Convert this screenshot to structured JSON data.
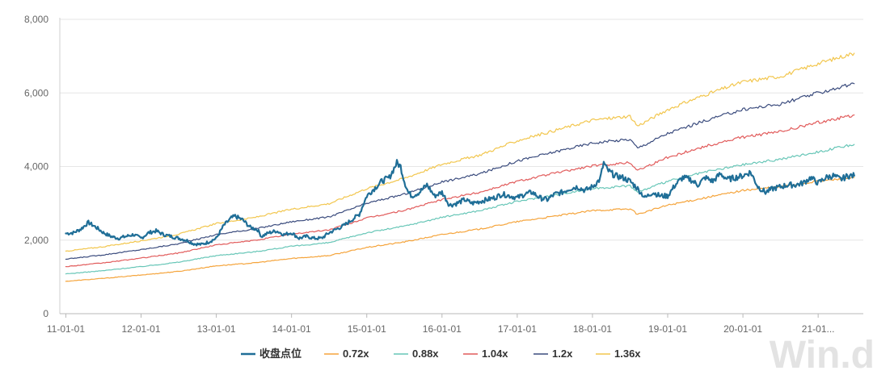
{
  "watermark": "Win.d",
  "chart_data": {
    "type": "line",
    "title": "",
    "xlabel": "",
    "ylabel": "",
    "ylim": [
      0,
      8000
    ],
    "xlim": [
      2010.92,
      2021.6
    ],
    "yticks": [
      0,
      2000,
      4000,
      6000,
      8000
    ],
    "ytick_labels": [
      "0",
      "2,000",
      "4,000",
      "6,000",
      "8,000"
    ],
    "xticks": [
      {
        "label": "11-01-01",
        "x": 2011.0
      },
      {
        "label": "12-01-01",
        "x": 2012.0
      },
      {
        "label": "13-01-01",
        "x": 2013.0
      },
      {
        "label": "14-01-01",
        "x": 2014.0
      },
      {
        "label": "15-01-01",
        "x": 2015.0
      },
      {
        "label": "16-01-01",
        "x": 2016.0
      },
      {
        "label": "17-01-01",
        "x": 2017.0
      },
      {
        "label": "18-01-01",
        "x": 2018.0
      },
      {
        "label": "19-01-01",
        "x": 2019.0
      },
      {
        "label": "20-01-01",
        "x": 2020.0
      },
      {
        "label": "21-01...",
        "x": 2021.0
      }
    ],
    "grid": {
      "horizontal": true,
      "vertical": false
    },
    "legend_position": "bottom-center",
    "series": [
      {
        "name": "收盘点位",
        "color": "#1f6e97",
        "width": 2.2,
        "points": [
          [
            2011.0,
            2180
          ],
          [
            2011.1,
            2200
          ],
          [
            2011.2,
            2300
          ],
          [
            2011.3,
            2480
          ],
          [
            2011.4,
            2350
          ],
          [
            2011.5,
            2200
          ],
          [
            2011.6,
            2100
          ],
          [
            2011.7,
            2050
          ],
          [
            2011.8,
            2100
          ],
          [
            2011.9,
            2150
          ],
          [
            2012.0,
            2050
          ],
          [
            2012.1,
            2200
          ],
          [
            2012.2,
            2250
          ],
          [
            2012.3,
            2150
          ],
          [
            2012.4,
            2100
          ],
          [
            2012.5,
            2050
          ],
          [
            2012.6,
            2000
          ],
          [
            2012.7,
            1900
          ],
          [
            2012.8,
            1880
          ],
          [
            2012.9,
            1950
          ],
          [
            2013.0,
            2050
          ],
          [
            2013.1,
            2400
          ],
          [
            2013.2,
            2600
          ],
          [
            2013.25,
            2650
          ],
          [
            2013.35,
            2550
          ],
          [
            2013.45,
            2350
          ],
          [
            2013.55,
            2280
          ],
          [
            2013.6,
            2100
          ],
          [
            2013.7,
            2200
          ],
          [
            2013.8,
            2250
          ],
          [
            2013.9,
            2150
          ],
          [
            2014.0,
            2200
          ],
          [
            2014.1,
            2050
          ],
          [
            2014.2,
            2100
          ],
          [
            2014.3,
            2050
          ],
          [
            2014.4,
            2050
          ],
          [
            2014.5,
            2200
          ],
          [
            2014.6,
            2300
          ],
          [
            2014.7,
            2400
          ],
          [
            2014.8,
            2550
          ],
          [
            2014.9,
            2700
          ],
          [
            2015.0,
            3200
          ],
          [
            2015.1,
            3400
          ],
          [
            2015.2,
            3600
          ],
          [
            2015.3,
            3700
          ],
          [
            2015.4,
            4100
          ],
          [
            2015.45,
            4000
          ],
          [
            2015.5,
            3600
          ],
          [
            2015.55,
            3300
          ],
          [
            2015.6,
            3200
          ],
          [
            2015.7,
            3300
          ],
          [
            2015.8,
            3500
          ],
          [
            2015.9,
            3200
          ],
          [
            2016.0,
            3300
          ],
          [
            2016.1,
            2950
          ],
          [
            2016.2,
            3000
          ],
          [
            2016.3,
            3100
          ],
          [
            2016.4,
            3000
          ],
          [
            2016.5,
            3050
          ],
          [
            2016.6,
            3100
          ],
          [
            2016.7,
            3150
          ],
          [
            2016.8,
            3250
          ],
          [
            2016.9,
            3200
          ],
          [
            2017.0,
            3150
          ],
          [
            2017.1,
            3250
          ],
          [
            2017.2,
            3300
          ],
          [
            2017.3,
            3150
          ],
          [
            2017.4,
            3100
          ],
          [
            2017.5,
            3250
          ],
          [
            2017.6,
            3300
          ],
          [
            2017.7,
            3400
          ],
          [
            2017.8,
            3450
          ],
          [
            2017.9,
            3350
          ],
          [
            2018.0,
            3450
          ],
          [
            2018.1,
            3650
          ],
          [
            2018.15,
            4100
          ],
          [
            2018.2,
            3900
          ],
          [
            2018.3,
            3750
          ],
          [
            2018.4,
            3700
          ],
          [
            2018.5,
            3600
          ],
          [
            2018.6,
            3400
          ],
          [
            2018.7,
            3150
          ],
          [
            2018.8,
            3300
          ],
          [
            2018.9,
            3200
          ],
          [
            2019.0,
            3200
          ],
          [
            2019.1,
            3500
          ],
          [
            2019.2,
            3700
          ],
          [
            2019.3,
            3650
          ],
          [
            2019.4,
            3500
          ],
          [
            2019.5,
            3700
          ],
          [
            2019.6,
            3600
          ],
          [
            2019.7,
            3800
          ],
          [
            2019.8,
            3650
          ],
          [
            2019.9,
            3700
          ],
          [
            2020.0,
            3750
          ],
          [
            2020.1,
            3850
          ],
          [
            2020.2,
            3450
          ],
          [
            2020.3,
            3300
          ],
          [
            2020.4,
            3400
          ],
          [
            2020.5,
            3450
          ],
          [
            2020.6,
            3500
          ],
          [
            2020.7,
            3500
          ],
          [
            2020.8,
            3550
          ],
          [
            2020.9,
            3700
          ],
          [
            2021.0,
            3550
          ],
          [
            2021.1,
            3700
          ],
          [
            2021.2,
            3750
          ],
          [
            2021.3,
            3650
          ],
          [
            2021.4,
            3750
          ],
          [
            2021.48,
            3750
          ]
        ]
      },
      {
        "name": "0.72x",
        "color": "#f5a43b",
        "width": 1.2,
        "points": [
          [
            2011.0,
            880
          ],
          [
            2011.5,
            960
          ],
          [
            2012.0,
            1050
          ],
          [
            2012.5,
            1150
          ],
          [
            2013.0,
            1300
          ],
          [
            2013.5,
            1380
          ],
          [
            2014.0,
            1500
          ],
          [
            2014.5,
            1580
          ],
          [
            2015.0,
            1800
          ],
          [
            2015.5,
            1950
          ],
          [
            2016.0,
            2150
          ],
          [
            2016.5,
            2300
          ],
          [
            2017.0,
            2500
          ],
          [
            2017.5,
            2650
          ],
          [
            2018.0,
            2800
          ],
          [
            2018.5,
            2850
          ],
          [
            2018.6,
            2700
          ],
          [
            2019.0,
            2950
          ],
          [
            2019.5,
            3150
          ],
          [
            2020.0,
            3350
          ],
          [
            2020.5,
            3450
          ],
          [
            2021.0,
            3600
          ],
          [
            2021.48,
            3700
          ]
        ]
      },
      {
        "name": "0.88x",
        "color": "#67c6b7",
        "width": 1.2,
        "points": [
          [
            2011.0,
            1080
          ],
          [
            2011.5,
            1170
          ],
          [
            2012.0,
            1280
          ],
          [
            2012.5,
            1400
          ],
          [
            2013.0,
            1580
          ],
          [
            2013.5,
            1680
          ],
          [
            2014.0,
            1830
          ],
          [
            2014.5,
            1930
          ],
          [
            2015.0,
            2200
          ],
          [
            2015.5,
            2380
          ],
          [
            2016.0,
            2620
          ],
          [
            2016.5,
            2800
          ],
          [
            2017.0,
            3050
          ],
          [
            2017.5,
            3230
          ],
          [
            2018.0,
            3400
          ],
          [
            2018.5,
            3480
          ],
          [
            2018.6,
            3300
          ],
          [
            2019.0,
            3600
          ],
          [
            2019.5,
            3850
          ],
          [
            2020.0,
            4050
          ],
          [
            2020.5,
            4200
          ],
          [
            2021.0,
            4400
          ],
          [
            2021.48,
            4600
          ]
        ]
      },
      {
        "name": "1.04x",
        "color": "#e15a5a",
        "width": 1.2,
        "points": [
          [
            2011.0,
            1280
          ],
          [
            2011.5,
            1380
          ],
          [
            2012.0,
            1510
          ],
          [
            2012.5,
            1650
          ],
          [
            2013.0,
            1870
          ],
          [
            2013.5,
            1990
          ],
          [
            2014.0,
            2160
          ],
          [
            2014.5,
            2280
          ],
          [
            2015.0,
            2600
          ],
          [
            2015.5,
            2810
          ],
          [
            2016.0,
            3100
          ],
          [
            2016.5,
            3300
          ],
          [
            2017.0,
            3600
          ],
          [
            2017.5,
            3820
          ],
          [
            2018.0,
            4020
          ],
          [
            2018.5,
            4110
          ],
          [
            2018.6,
            3900
          ],
          [
            2019.0,
            4250
          ],
          [
            2019.5,
            4550
          ],
          [
            2020.0,
            4800
          ],
          [
            2020.5,
            4950
          ],
          [
            2021.0,
            5200
          ],
          [
            2021.48,
            5400
          ]
        ]
      },
      {
        "name": "1.2x",
        "color": "#3a4b7d",
        "width": 1.2,
        "points": [
          [
            2011.0,
            1480
          ],
          [
            2011.5,
            1600
          ],
          [
            2012.0,
            1740
          ],
          [
            2012.5,
            1900
          ],
          [
            2013.0,
            2150
          ],
          [
            2013.5,
            2300
          ],
          [
            2014.0,
            2500
          ],
          [
            2014.5,
            2630
          ],
          [
            2015.0,
            3000
          ],
          [
            2015.5,
            3250
          ],
          [
            2016.0,
            3580
          ],
          [
            2016.5,
            3800
          ],
          [
            2017.0,
            4150
          ],
          [
            2017.5,
            4400
          ],
          [
            2018.0,
            4640
          ],
          [
            2018.5,
            4740
          ],
          [
            2018.6,
            4500
          ],
          [
            2019.0,
            4900
          ],
          [
            2019.5,
            5250
          ],
          [
            2020.0,
            5550
          ],
          [
            2020.5,
            5700
          ],
          [
            2021.0,
            6000
          ],
          [
            2021.48,
            6250
          ]
        ]
      },
      {
        "name": "1.36x",
        "color": "#f2c64d",
        "width": 1.2,
        "points": [
          [
            2011.0,
            1700
          ],
          [
            2011.5,
            1820
          ],
          [
            2012.0,
            1980
          ],
          [
            2012.5,
            2160
          ],
          [
            2013.0,
            2450
          ],
          [
            2013.5,
            2610
          ],
          [
            2014.0,
            2840
          ],
          [
            2014.5,
            2990
          ],
          [
            2015.0,
            3400
          ],
          [
            2015.5,
            3680
          ],
          [
            2016.0,
            4060
          ],
          [
            2016.5,
            4310
          ],
          [
            2017.0,
            4700
          ],
          [
            2017.5,
            4980
          ],
          [
            2018.0,
            5260
          ],
          [
            2018.5,
            5370
          ],
          [
            2018.6,
            5100
          ],
          [
            2019.0,
            5550
          ],
          [
            2019.5,
            5950
          ],
          [
            2020.0,
            6300
          ],
          [
            2020.5,
            6450
          ],
          [
            2021.0,
            6800
          ],
          [
            2021.48,
            7080
          ]
        ]
      }
    ]
  }
}
